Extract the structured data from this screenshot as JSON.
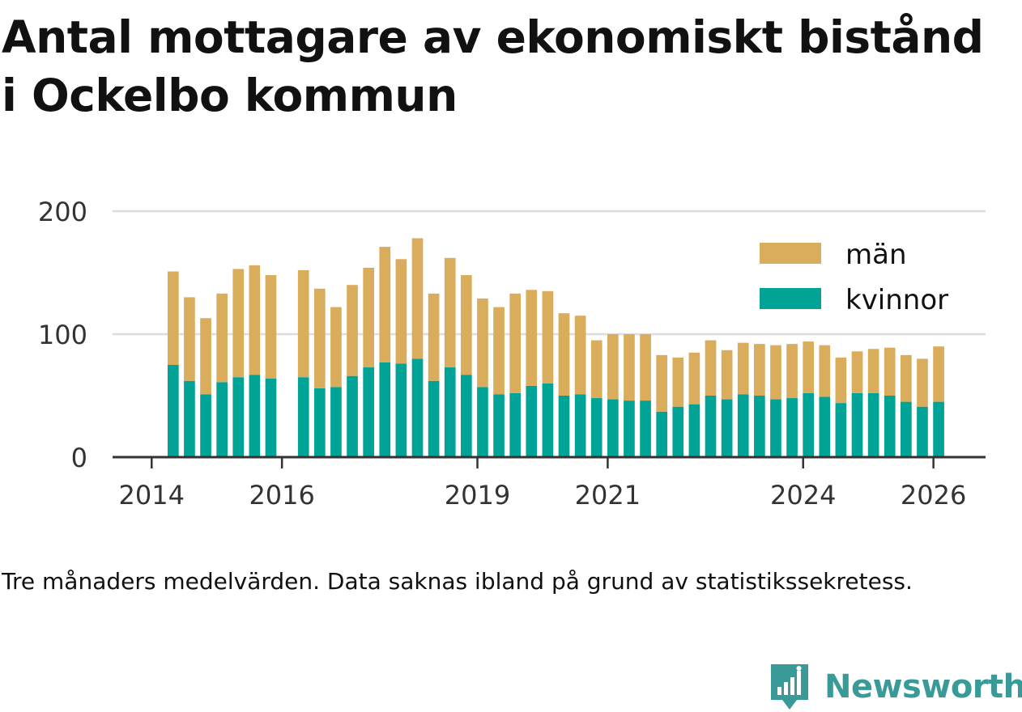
{
  "title_line1": "Antal mottagare av ekonomiskt bistånd",
  "title_line2": "i Ockelbo kommun",
  "caption": "Tre månaders medelvärden. Data saknas ibland på grund av statistikssekretess.",
  "brand": {
    "name": "Newsworthy",
    "icon": "newsworthy-logo-icon",
    "color": "#3a9a98"
  },
  "colors": {
    "man": "#d9ad5b",
    "kvinnor": "#00a396",
    "grid": "#dddddd",
    "axis": "#333333",
    "text": "#333333"
  },
  "chart_data": {
    "type": "bar",
    "stacked": true,
    "title": "Antal mottagare av ekonomiskt bistånd i Ockelbo kommun",
    "xlabel": "",
    "ylabel": "",
    "ylim": [
      0,
      200
    ],
    "yticks": [
      0,
      100,
      200
    ],
    "xticks": [
      {
        "label": "2014",
        "value": 2014.0
      },
      {
        "label": "2016",
        "value": 2016.0
      },
      {
        "label": "2019",
        "value": 2019.0
      },
      {
        "label": "2021",
        "value": 2021.0
      },
      {
        "label": "2024",
        "value": 2024.0
      },
      {
        "label": "2026",
        "value": 2026.0
      }
    ],
    "x_range": [
      2013.4,
      2026.8
    ],
    "bar_width_years": 0.17,
    "grid": true,
    "legend_position": "top-right",
    "x": [
      2014.33,
      2014.58,
      2014.83,
      2015.08,
      2015.33,
      2015.58,
      2015.83,
      2016.33,
      2016.58,
      2016.83,
      2017.08,
      2017.33,
      2017.58,
      2017.83,
      2018.08,
      2018.33,
      2018.58,
      2018.83,
      2019.08,
      2019.33,
      2019.58,
      2019.83,
      2020.08,
      2020.33,
      2020.58,
      2020.83,
      2021.08,
      2021.33,
      2021.58,
      2021.83,
      2022.08,
      2022.33,
      2022.58,
      2022.83,
      2023.08,
      2023.33,
      2023.58,
      2023.83,
      2024.08,
      2024.33,
      2024.58,
      2024.83,
      2025.08,
      2025.33,
      2025.58,
      2025.83,
      2026.08
    ],
    "series": [
      {
        "name": "kvinnor",
        "color": "#00a396",
        "values": [
          75,
          62,
          51,
          61,
          65,
          67,
          64,
          65,
          56,
          57,
          66,
          73,
          77,
          76,
          80,
          62,
          73,
          67,
          57,
          51,
          52,
          58,
          60,
          50,
          51,
          48,
          47,
          46,
          46,
          37,
          41,
          43,
          50,
          47,
          51,
          50,
          47,
          48,
          52,
          49,
          44,
          52,
          52,
          50,
          45,
          41,
          45
        ]
      },
      {
        "name": "män",
        "color": "#d9ad5b",
        "values": [
          76,
          68,
          62,
          72,
          88,
          89,
          84,
          87,
          81,
          65,
          74,
          81,
          94,
          85,
          98,
          71,
          89,
          81,
          72,
          71,
          81,
          78,
          75,
          67,
          64,
          47,
          53,
          54,
          54,
          46,
          40,
          42,
          45,
          40,
          42,
          42,
          44,
          44,
          42,
          42,
          37,
          34,
          36,
          39,
          38,
          39,
          45
        ]
      }
    ],
    "legend": [
      {
        "label": "män",
        "color": "#d9ad5b"
      },
      {
        "label": "kvinnor",
        "color": "#00a396"
      }
    ]
  }
}
